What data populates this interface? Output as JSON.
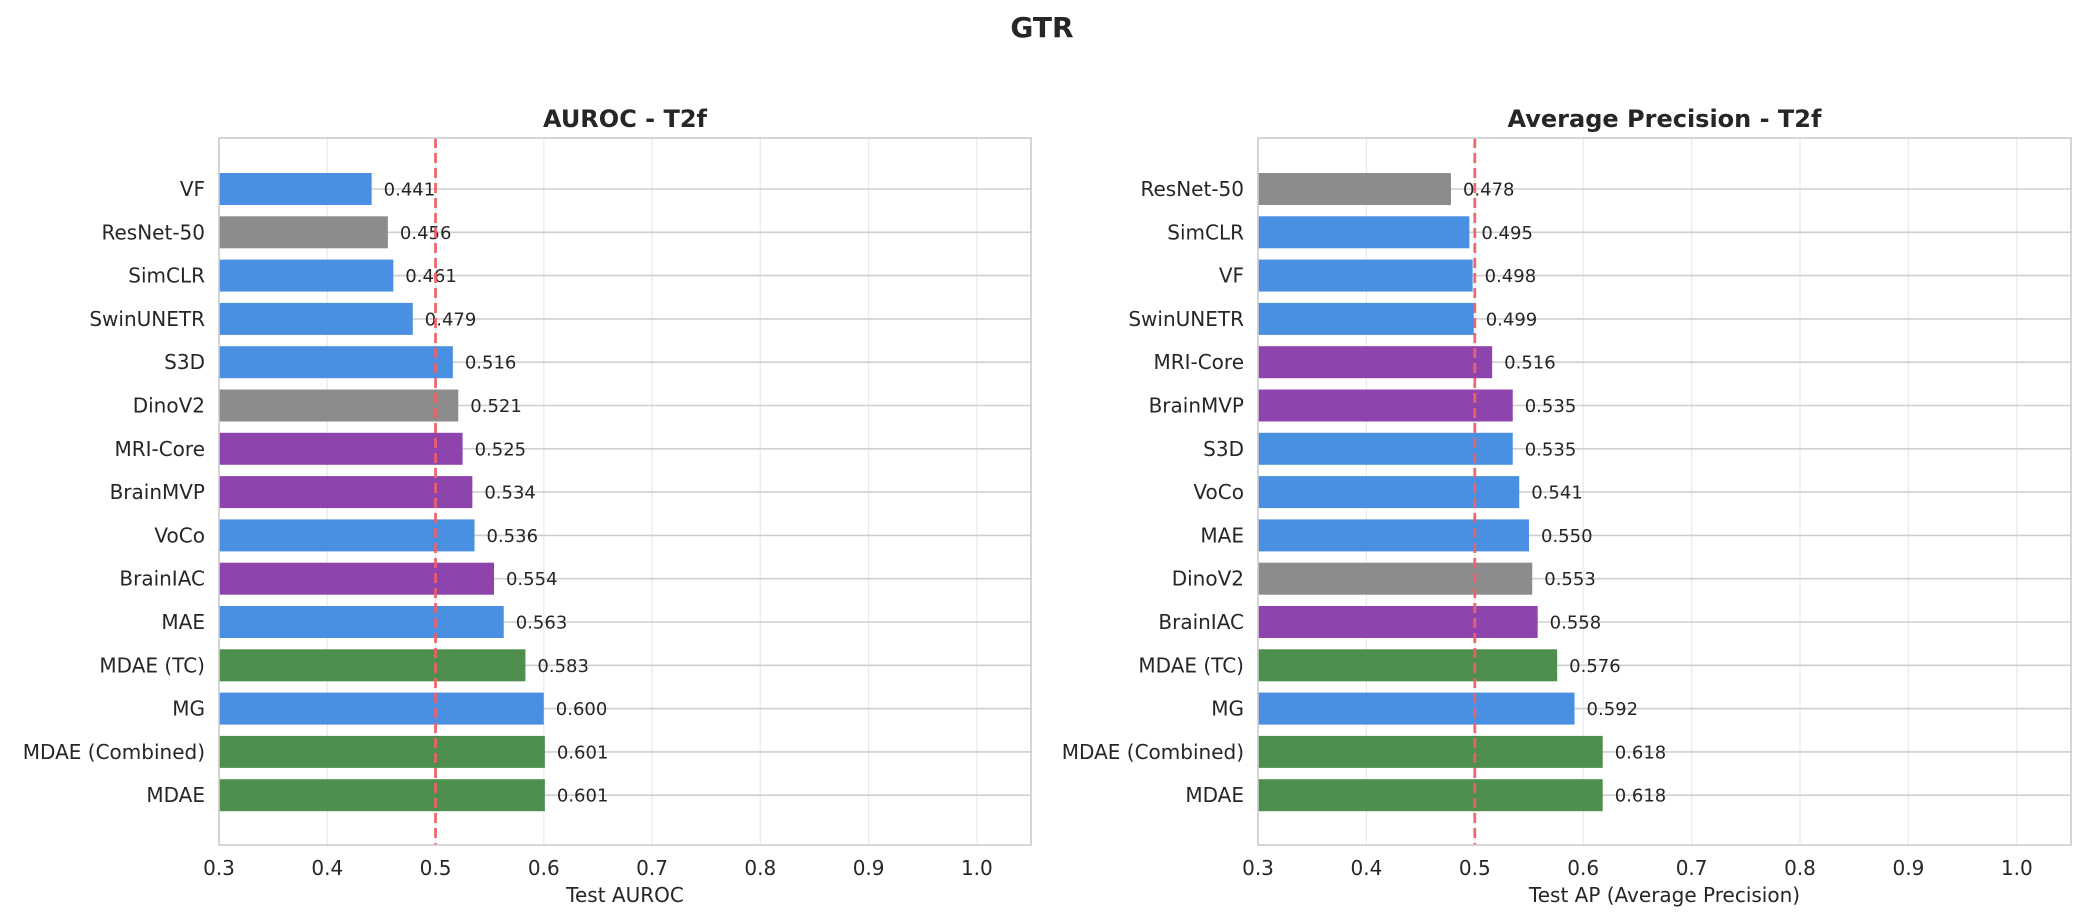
{
  "suptitle": "GTR",
  "colors": {
    "blue": "#4a90e2",
    "gray": "#8c8c8c",
    "purple": "#8e44ad",
    "green": "#4e8f4e",
    "refline": "#f0606a"
  },
  "chart_data": [
    {
      "type": "bar",
      "orientation": "horizontal",
      "title": "AUROC - T2f",
      "xlabel": "Test AUROC",
      "xlim": [
        0.3,
        1.05
      ],
      "xticks": [
        "0.3",
        "0.4",
        "0.5",
        "0.6",
        "0.7",
        "0.8",
        "0.9",
        "1.0"
      ],
      "reference_line": 0.5,
      "grid": true,
      "categories": [
        "VF",
        "ResNet-50",
        "SimCLR",
        "SwinUNETR",
        "S3D",
        "DinoV2",
        "MRI-Core",
        "BrainMVP",
        "VoCo",
        "BrainIAC",
        "MAE",
        "MDAE (TC)",
        "MG",
        "MDAE (Combined)",
        "MDAE"
      ],
      "values": [
        0.441,
        0.456,
        0.461,
        0.479,
        0.516,
        0.521,
        0.525,
        0.534,
        0.536,
        0.554,
        0.563,
        0.583,
        0.6,
        0.601,
        0.601
      ],
      "labels": [
        "0.441",
        "0.456",
        "0.461",
        "0.479",
        "0.516",
        "0.521",
        "0.525",
        "0.534",
        "0.536",
        "0.554",
        "0.563",
        "0.583",
        "0.600",
        "0.601",
        "0.601"
      ],
      "bar_colors": [
        "blue",
        "gray",
        "blue",
        "blue",
        "blue",
        "gray",
        "purple",
        "purple",
        "blue",
        "purple",
        "blue",
        "green",
        "blue",
        "green",
        "green"
      ]
    },
    {
      "type": "bar",
      "orientation": "horizontal",
      "title": "Average Precision - T2f",
      "xlabel": "Test AP (Average Precision)",
      "xlim": [
        0.3,
        1.05
      ],
      "xticks": [
        "0.3",
        "0.4",
        "0.5",
        "0.6",
        "0.7",
        "0.8",
        "0.9",
        "1.0"
      ],
      "reference_line": 0.5,
      "grid": true,
      "categories": [
        "ResNet-50",
        "SimCLR",
        "VF",
        "SwinUNETR",
        "MRI-Core",
        "BrainMVP",
        "S3D",
        "VoCo",
        "MAE",
        "DinoV2",
        "BrainIAC",
        "MDAE (TC)",
        "MG",
        "MDAE (Combined)",
        "MDAE"
      ],
      "values": [
        0.478,
        0.495,
        0.498,
        0.499,
        0.516,
        0.535,
        0.535,
        0.541,
        0.55,
        0.553,
        0.558,
        0.576,
        0.592,
        0.618,
        0.618
      ],
      "labels": [
        "0.478",
        "0.495",
        "0.498",
        "0.499",
        "0.516",
        "0.535",
        "0.535",
        "0.541",
        "0.550",
        "0.553",
        "0.558",
        "0.576",
        "0.592",
        "0.618",
        "0.618"
      ],
      "bar_colors": [
        "gray",
        "blue",
        "blue",
        "blue",
        "purple",
        "purple",
        "blue",
        "blue",
        "blue",
        "gray",
        "purple",
        "green",
        "blue",
        "green",
        "green"
      ]
    }
  ]
}
